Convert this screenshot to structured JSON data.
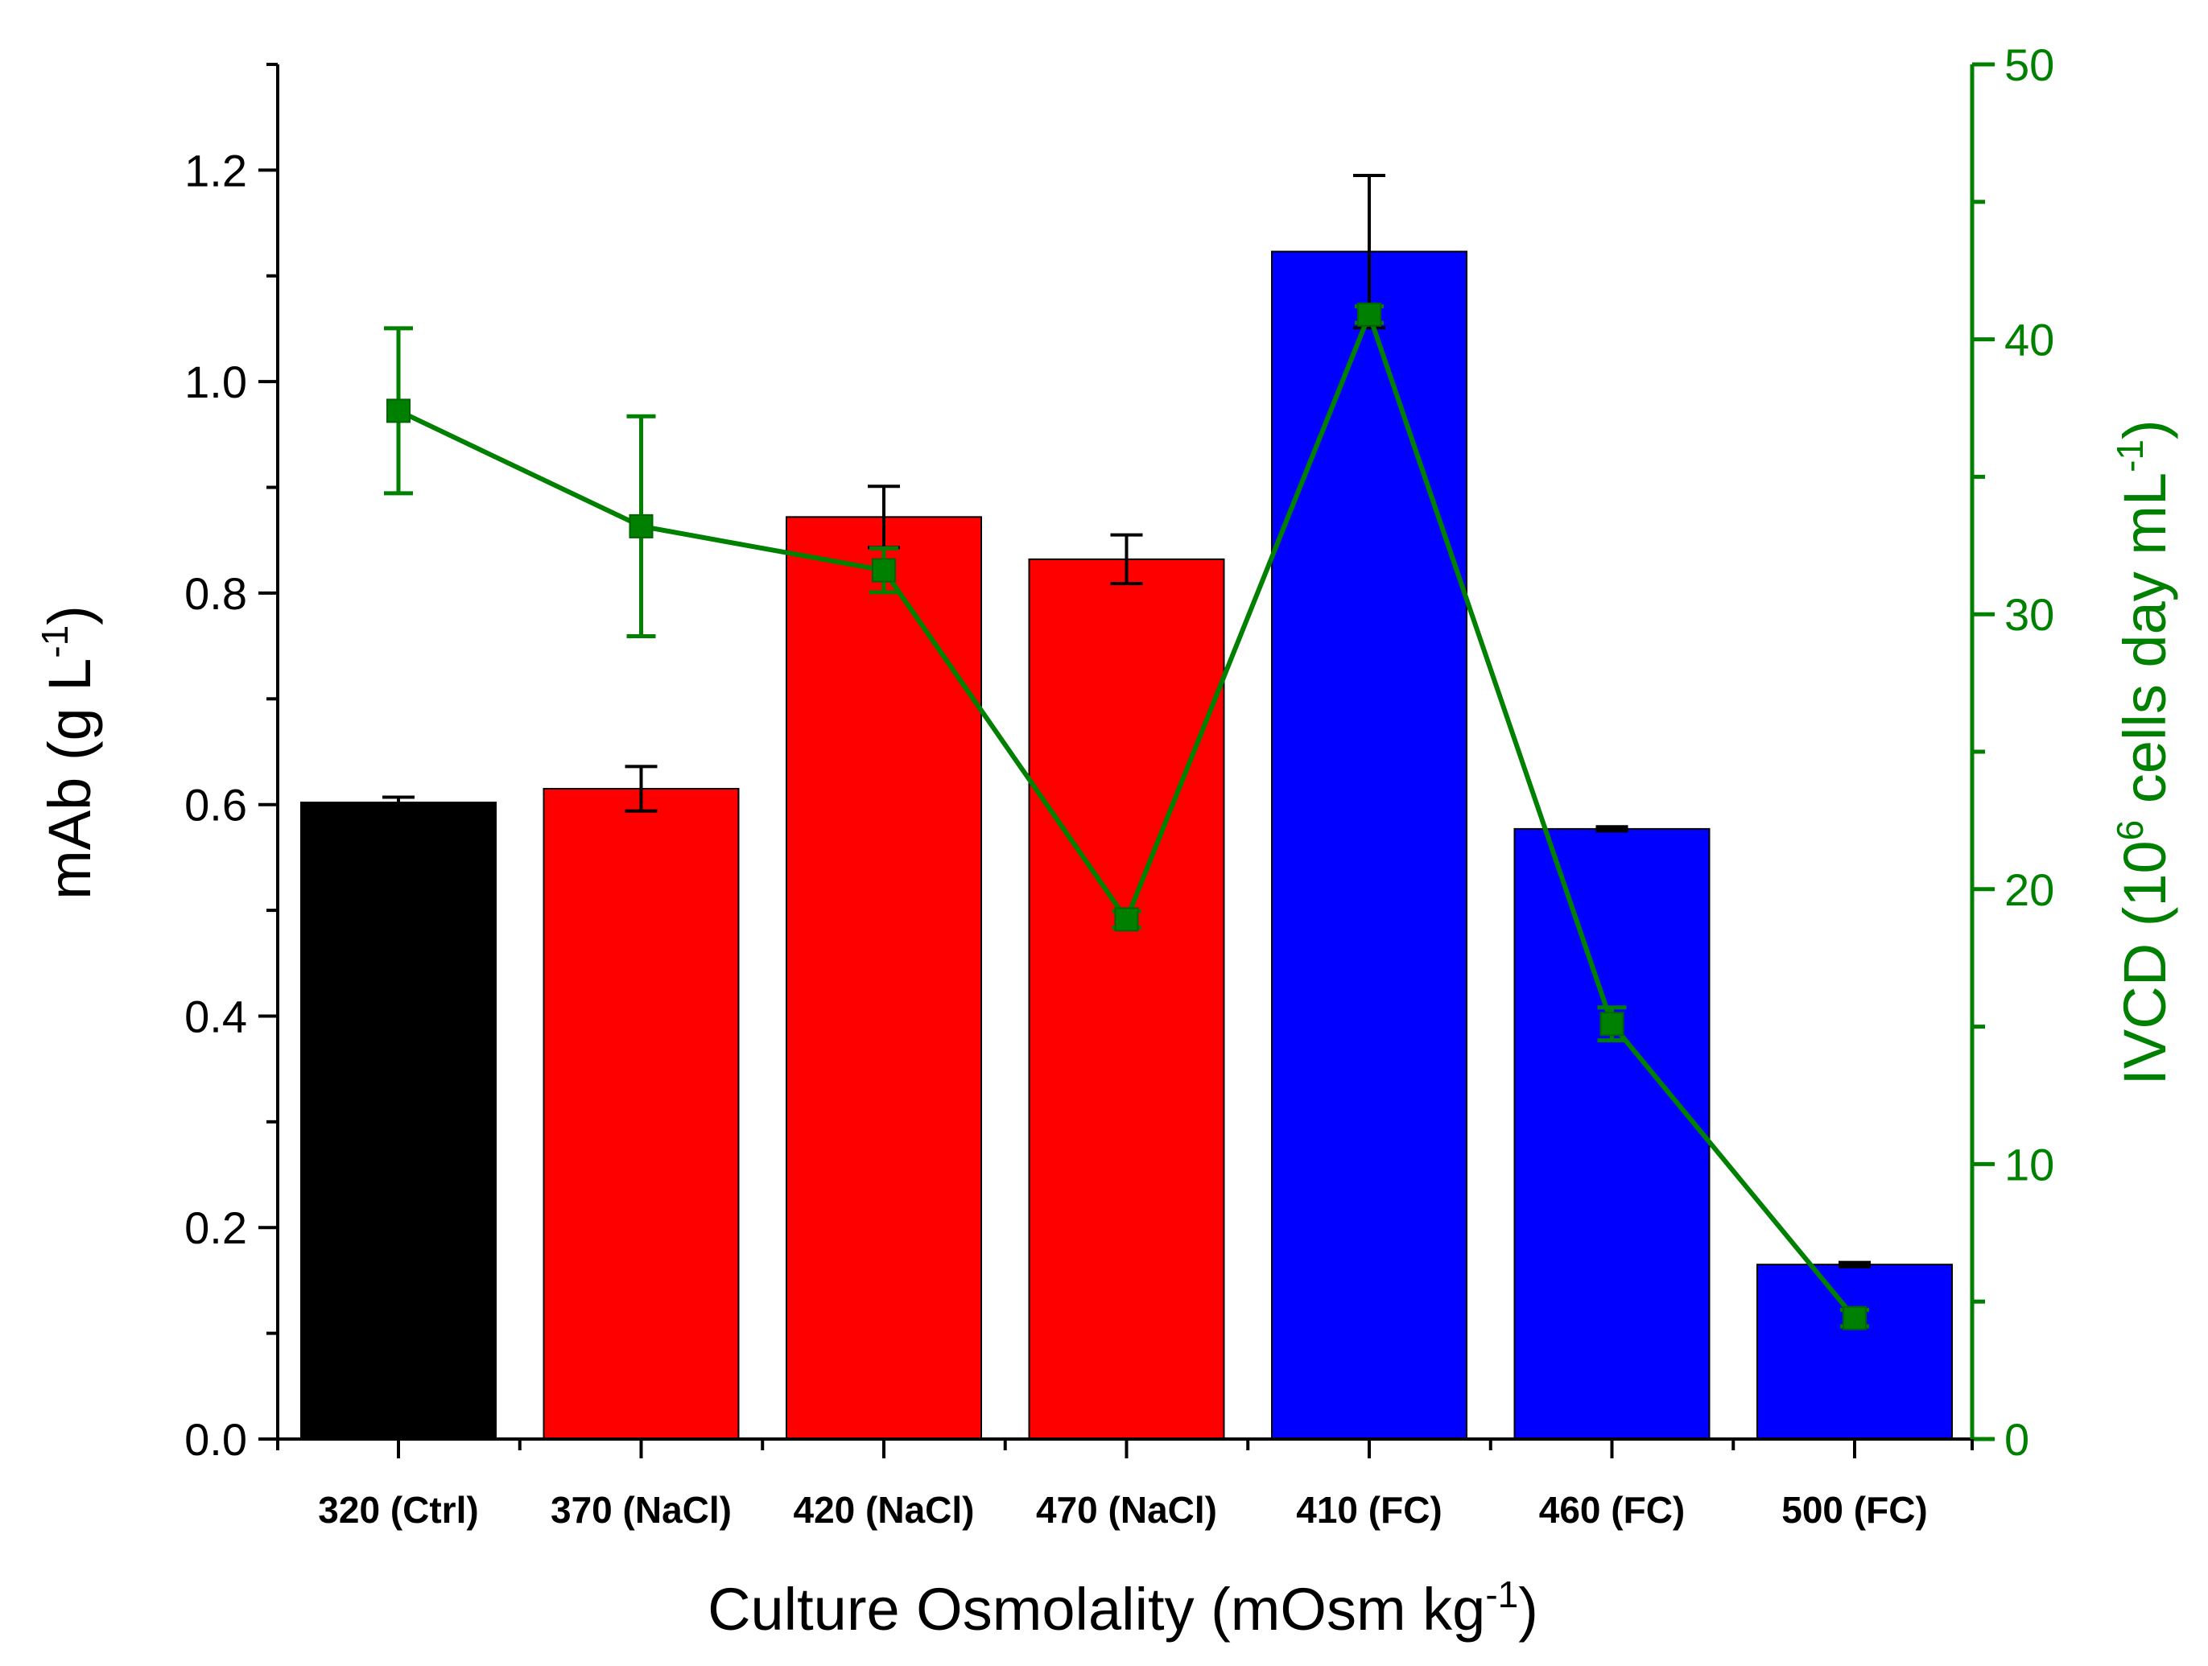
{
  "chart_data": {
    "type": "bar",
    "categories": [
      "320 (Ctrl)",
      "370 (NaCl)",
      "420 (NaCl)",
      "470 (NaCl)",
      "410 (FC)",
      "460 (FC)",
      "500 (FC)"
    ],
    "series": [
      {
        "name": "mAb",
        "axis": "left",
        "kind": "bar",
        "values": [
          0.602,
          0.615,
          0.872,
          0.832,
          1.123,
          0.577,
          0.165
        ],
        "errors": [
          0.005,
          0.021,
          0.029,
          0.023,
          0.072,
          0.002,
          0.002
        ],
        "colors": [
          "#000000",
          "#ff0000",
          "#ff0000",
          "#ff0000",
          "#0000ff",
          "#0000ff",
          "#0000ff"
        ]
      },
      {
        "name": "IVCD",
        "axis": "right",
        "kind": "line",
        "marker": "square",
        "color": "#008000",
        "values": [
          37.4,
          33.2,
          31.6,
          18.9,
          40.9,
          15.1,
          4.4
        ],
        "errors": [
          3.0,
          4.0,
          0.8,
          0.3,
          0.3,
          0.6,
          0.3
        ]
      }
    ],
    "xlabel": {
      "main": "Culture Osmolality (mOsm kg",
      "sup": "-1",
      "end": ")"
    },
    "ylabel": {
      "main": "mAb (g L",
      "sup": "-1",
      "end": ")"
    },
    "y2label": {
      "pre": "IVCD (10",
      "sup1": "6",
      "mid": " cells day mL",
      "sup2": "-1",
      "end": ")"
    },
    "ylim": [
      0,
      1.3
    ],
    "y2lim": [
      0,
      50
    ],
    "yticks": [
      "0.0",
      "0.2",
      "0.4",
      "0.6",
      "0.8",
      "1.0",
      "1.2"
    ],
    "y2ticks": [
      "0",
      "10",
      "20",
      "30",
      "40",
      "50"
    ],
    "y2color": "#008000",
    "grid": false
  }
}
